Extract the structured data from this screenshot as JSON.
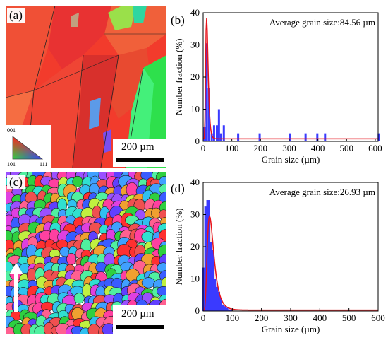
{
  "figure": {
    "panel_labels": [
      "(a)",
      "(b)",
      "(c)",
      "(d)"
    ],
    "scale_bar_text": "200 µm",
    "ipf_legend": {
      "top": "001",
      "left": "101",
      "right": "111"
    }
  },
  "colors": {
    "bar": "#3a3aff",
    "fit": "#e8141c",
    "axis": "#000000"
  },
  "chart_data": [
    {
      "type": "bar",
      "panel": "(b)",
      "annotation": "Average grain size:84.56 µm",
      "xlabel": "Grain size (µm)",
      "ylabel": "Number fraction (%)",
      "xlim": [
        0,
        610
      ],
      "ylim": [
        0,
        40
      ],
      "xticks": [
        0,
        100,
        200,
        300,
        400,
        500,
        600
      ],
      "yticks": [
        0,
        10,
        20,
        30,
        40
      ],
      "x": [
        5,
        12,
        20,
        30,
        38,
        48,
        55,
        62,
        72,
        122,
        197,
        303,
        357,
        398,
        425,
        612
      ],
      "values": [
        4.5,
        30.5,
        16.5,
        2.5,
        5,
        5,
        10,
        2.5,
        5,
        2.5,
        2.5,
        2.5,
        2.5,
        2.5,
        2.5,
        2.5
      ],
      "fit_curve": {
        "peak_x": 12,
        "peak_y": 38.5,
        "baseline": 0.8
      }
    },
    {
      "type": "bar",
      "panel": "(d)",
      "annotation": "Average grain size:26.93 µm",
      "xlabel": "Grain size (µm)",
      "ylabel": "Number fraction (%)",
      "xlim": [
        0,
        600
      ],
      "ylim": [
        0,
        40
      ],
      "xticks": [
        0,
        100,
        200,
        300,
        400,
        500,
        600
      ],
      "yticks": [
        0,
        10,
        20,
        30,
        40
      ],
      "x": [
        3,
        10,
        17,
        24,
        31,
        38,
        45,
        52,
        59,
        66,
        73,
        80,
        87,
        94
      ],
      "values": [
        13.5,
        32.5,
        34.5,
        21.5,
        19,
        10,
        7.5,
        6,
        4,
        2,
        1.5,
        1,
        0.5,
        0.3
      ],
      "fit_curve": {
        "peak_x": 22,
        "peak_y": 29.5,
        "baseline": 0.3
      }
    }
  ]
}
